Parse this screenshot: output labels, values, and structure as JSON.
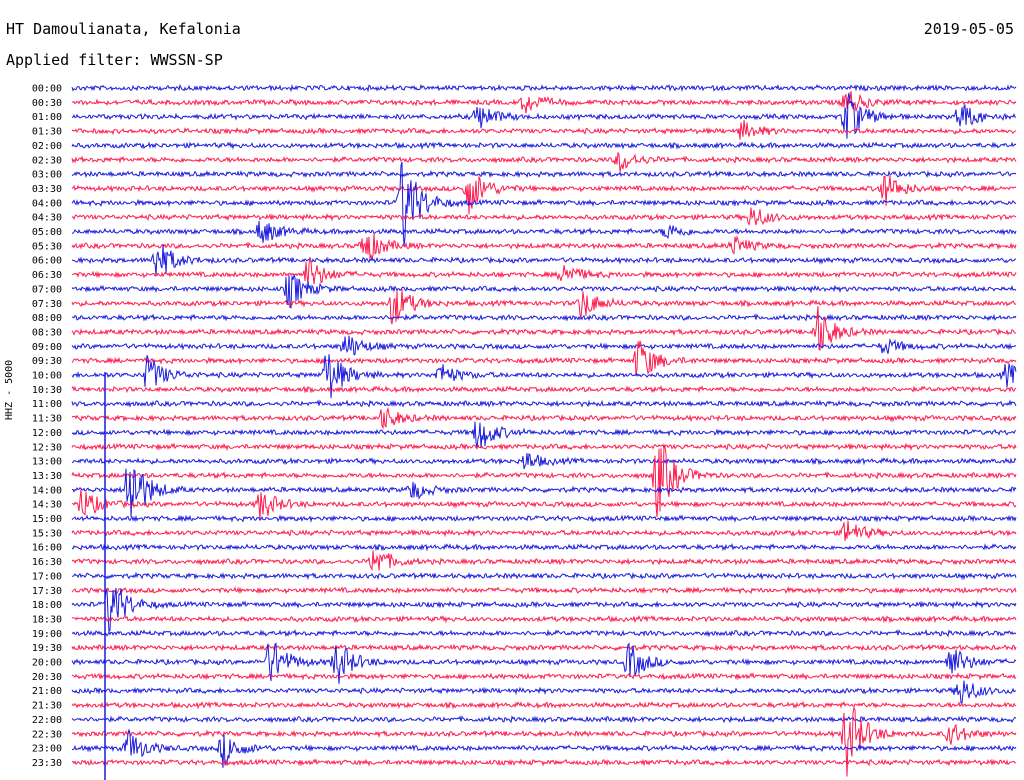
{
  "header": {
    "station": "HT Damoulianata, Kefalonia",
    "date": "2019-05-05",
    "filter": "Applied filter: WWSSN-SP"
  },
  "chart_data": {
    "type": "line",
    "title": "HT Damoulianata, Kefalonia",
    "subtitle": "Applied filter: WWSSN-SP",
    "ylabel": "HHZ - 5000",
    "xlabel": "",
    "grid": false,
    "legend": "none",
    "row_colors": [
      "#1a1adf",
      "#ff1a4d"
    ],
    "rows": [
      "00:00",
      "00:30",
      "01:00",
      "01:30",
      "02:00",
      "02:30",
      "03:00",
      "03:30",
      "04:00",
      "04:30",
      "05:00",
      "05:30",
      "06:00",
      "06:30",
      "07:00",
      "07:30",
      "08:00",
      "08:30",
      "09:00",
      "09:30",
      "10:00",
      "10:30",
      "11:00",
      "11:30",
      "12:00",
      "12:30",
      "13:00",
      "13:30",
      "14:00",
      "14:30",
      "15:00",
      "15:30",
      "16:00",
      "16:30",
      "17:00",
      "17:30",
      "18:00",
      "18:30",
      "19:00",
      "19:30",
      "20:00",
      "20:30",
      "21:00",
      "21:30",
      "22:00",
      "22:30",
      "23:00",
      "23:30"
    ],
    "events": [
      {
        "row": "00:30",
        "x": 0.48,
        "amp": 0.55
      },
      {
        "row": "00:30",
        "x": 0.82,
        "amp": 0.7
      },
      {
        "row": "01:00",
        "x": 0.43,
        "amp": 0.7
      },
      {
        "row": "01:00",
        "x": 0.82,
        "amp": 1.4
      },
      {
        "row": "01:00",
        "x": 0.94,
        "amp": 0.8
      },
      {
        "row": "01:30",
        "x": 0.71,
        "amp": 0.5
      },
      {
        "row": "02:30",
        "x": 0.58,
        "amp": 0.6
      },
      {
        "row": "03:30",
        "x": 0.42,
        "amp": 1.3
      },
      {
        "row": "03:30",
        "x": 0.86,
        "amp": 0.9
      },
      {
        "row": "04:00",
        "x": 0.35,
        "amp": 2.6
      },
      {
        "row": "04:30",
        "x": 0.72,
        "amp": 0.6
      },
      {
        "row": "05:00",
        "x": 0.2,
        "amp": 0.7
      },
      {
        "row": "05:00",
        "x": 0.63,
        "amp": 0.4
      },
      {
        "row": "05:30",
        "x": 0.31,
        "amp": 1.0
      },
      {
        "row": "05:30",
        "x": 0.7,
        "amp": 0.5
      },
      {
        "row": "06:00",
        "x": 0.09,
        "amp": 1.1
      },
      {
        "row": "06:30",
        "x": 0.25,
        "amp": 0.9
      },
      {
        "row": "06:30",
        "x": 0.52,
        "amp": 0.6
      },
      {
        "row": "07:00",
        "x": 0.23,
        "amp": 1.0
      },
      {
        "row": "07:30",
        "x": 0.34,
        "amp": 1.2
      },
      {
        "row": "07:30",
        "x": 0.54,
        "amp": 0.8
      },
      {
        "row": "08:30",
        "x": 0.79,
        "amp": 1.3
      },
      {
        "row": "09:00",
        "x": 0.29,
        "amp": 0.7
      },
      {
        "row": "09:00",
        "x": 0.86,
        "amp": 0.4
      },
      {
        "row": "09:30",
        "x": 0.6,
        "amp": 1.2
      },
      {
        "row": "10:00",
        "x": 0.08,
        "amp": 1.0
      },
      {
        "row": "10:00",
        "x": 0.27,
        "amp": 1.5
      },
      {
        "row": "10:00",
        "x": 0.39,
        "amp": 0.6
      },
      {
        "row": "10:00",
        "x": 0.99,
        "amp": 0.6
      },
      {
        "row": "11:30",
        "x": 0.33,
        "amp": 0.6
      },
      {
        "row": "12:00",
        "x": 0.43,
        "amp": 1.0
      },
      {
        "row": "13:00",
        "x": 0.48,
        "amp": 0.5
      },
      {
        "row": "13:30",
        "x": 0.62,
        "amp": 2.3
      },
      {
        "row": "14:00",
        "x": 0.06,
        "amp": 2.3
      },
      {
        "row": "14:00",
        "x": 0.36,
        "amp": 0.5
      },
      {
        "row": "14:30",
        "x": 0.01,
        "amp": 0.8
      },
      {
        "row": "14:30",
        "x": 0.2,
        "amp": 0.8
      },
      {
        "row": "15:30",
        "x": 0.82,
        "amp": 0.7
      },
      {
        "row": "16:30",
        "x": 0.32,
        "amp": 0.8
      },
      {
        "row": "18:00",
        "x": 0.04,
        "amp": 1.6
      },
      {
        "row": "20:00",
        "x": 0.21,
        "amp": 1.3
      },
      {
        "row": "20:00",
        "x": 0.28,
        "amp": 1.2
      },
      {
        "row": "20:00",
        "x": 0.59,
        "amp": 1.0
      },
      {
        "row": "20:00",
        "x": 0.93,
        "amp": 0.9
      },
      {
        "row": "21:00",
        "x": 0.94,
        "amp": 0.8
      },
      {
        "row": "22:30",
        "x": 0.82,
        "amp": 2.2
      },
      {
        "row": "22:30",
        "x": 0.93,
        "amp": 0.6
      },
      {
        "row": "23:00",
        "x": 0.06,
        "amp": 0.9
      },
      {
        "row": "23:00",
        "x": 0.16,
        "amp": 0.9
      }
    ]
  }
}
